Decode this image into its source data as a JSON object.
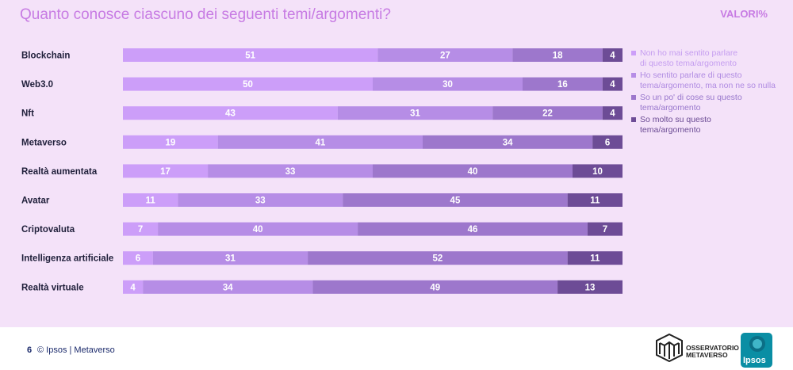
{
  "title": "Quanto conosce ciascuno dei seguenti temi/argomenti?",
  "unit_label": "VALORI%",
  "colors": {
    "background": "#f4e2f9",
    "title": "#c77be3",
    "series": [
      "#cc9ef9",
      "#b68de6",
      "#9d77cc",
      "#6d4c96"
    ],
    "legend_text": [
      "#c59df0",
      "#b08be2",
      "#9877cc",
      "#6b4b94"
    ]
  },
  "chart_data": {
    "type": "bar",
    "orientation": "horizontal",
    "stacked": true,
    "categories": [
      "Blockchain",
      "Web3.0",
      "Nft",
      "Metaverso",
      "Realtà aumentata",
      "Avatar",
      "Criptovaluta",
      "Intelligenza artificiale",
      "Realtà virtuale"
    ],
    "series": [
      {
        "name": "Non ho mai sentito parlare di questo tema/argomento",
        "values": [
          51,
          50,
          43,
          19,
          17,
          11,
          7,
          6,
          4
        ]
      },
      {
        "name": "Ho sentito parlare di questo tema/argomento, ma non ne so nulla",
        "values": [
          27,
          30,
          31,
          41,
          33,
          33,
          40,
          31,
          34
        ]
      },
      {
        "name": "So un po' di cose su questo tema/argomento",
        "values": [
          18,
          16,
          22,
          34,
          40,
          45,
          46,
          52,
          49
        ]
      },
      {
        "name": "So molto su questo tema/argomento",
        "values": [
          4,
          4,
          4,
          6,
          10,
          11,
          7,
          11,
          13
        ]
      }
    ],
    "xlim": [
      0,
      100
    ],
    "legend_position": "right",
    "data_labels": true,
    "grid": false
  },
  "legend": [
    "Non ho mai sentito parlare\ndi questo tema/argomento",
    "Ho sentito parlare di questo\ntema/argomento, ma non ne so nulla",
    "So un po' di cose su questo\ntema/argomento",
    "So molto su questo\ntema/argomento"
  ],
  "footer": {
    "page_number": "6",
    "text": "© Ipsos | Metaverso",
    "logo_line1": "OSSERVATORIO",
    "logo_line2": "METAVERSO",
    "ipsos_logo": "Ipsos"
  }
}
